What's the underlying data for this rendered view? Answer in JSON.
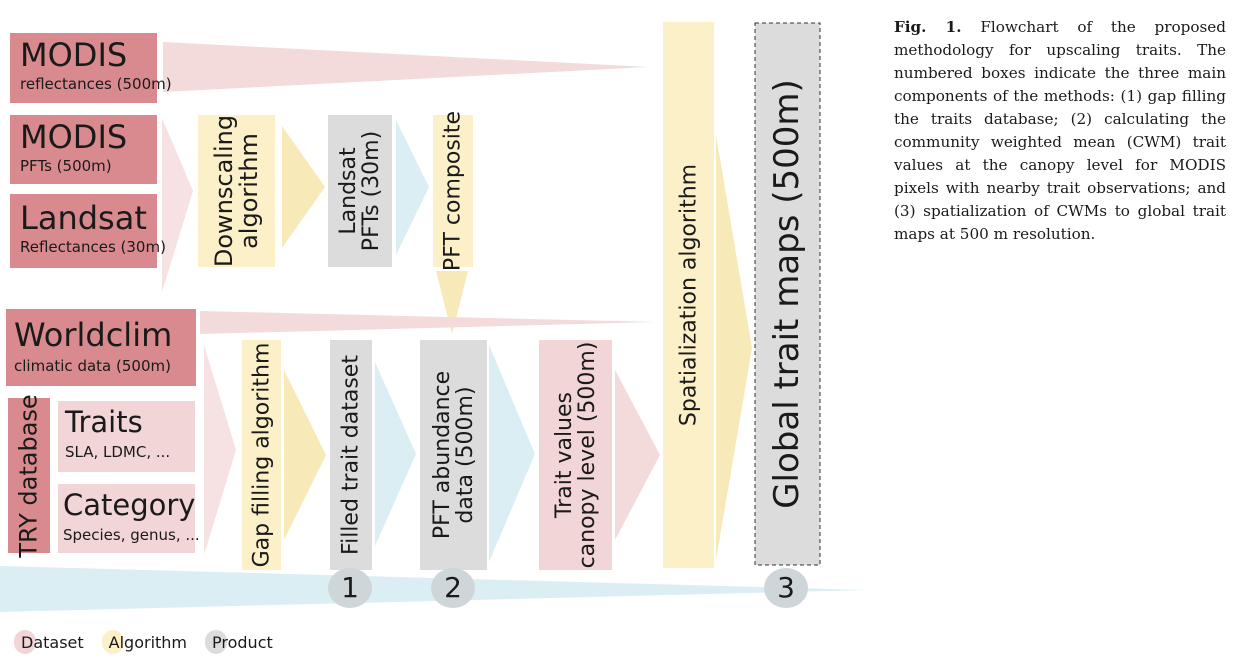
{
  "colors": {
    "dataset": "#d98a8f",
    "dataset_light": "#f2d5d7",
    "algorithm": "#fbf0c8",
    "product": "#dcdcdc",
    "flow_blue": "#dbeef3",
    "flow_pink": "#f3dadb",
    "flow_yellow": "#f7e9b8"
  },
  "inputs": {
    "modis_reflect": {
      "title": "MODIS",
      "sub": "reflectances (500m)"
    },
    "modis_pft": {
      "title": "MODIS",
      "sub": "PFTs (500m)"
    },
    "landsat": {
      "title": "Landsat",
      "sub": "Reflectances (30m)"
    },
    "worldclim": {
      "title": "Worldclim",
      "sub": "climatic data (500m)"
    },
    "try_db": {
      "title": "TRY database"
    },
    "traits": {
      "title": "Traits",
      "sub": "SLA, LDMC, ..."
    },
    "category": {
      "title": "Category",
      "sub": "Species, genus, ..."
    }
  },
  "steps": {
    "downscaling": {
      "line1": "Downscaling",
      "line2": "algorithm"
    },
    "landsat_pfts": {
      "line1": "Landsat",
      "line2": "PFTs (30m)"
    },
    "pft_composite": {
      "line1": "PFT composite"
    },
    "gap_filling": {
      "line1": "Gap filling algorithm"
    },
    "filled_dataset": {
      "line1": "Filled trait dataset"
    },
    "pft_abundance": {
      "line1": "PFT abundance",
      "line2": "data (500m)"
    },
    "trait_values": {
      "line1": "Trait values",
      "line2": "canopy level (500m)"
    },
    "spatialization": {
      "line1": "Spatialization algorithm"
    },
    "global_maps": {
      "line1": "Global trait maps (500m)"
    }
  },
  "numbers": [
    "1",
    "2",
    "3"
  ],
  "legend": {
    "dataset": "Dataset",
    "algorithm": "Algorithm",
    "product": "Product"
  },
  "caption": {
    "label": "Fig. 1.",
    "text": "Flowchart of the proposed methodology for upscaling traits. The numbered boxes indicate the three main components of the methods: (1) gap filling the traits database; (2) calculating the community weighted mean (CWM) trait values at the canopy level for MODIS pixels with nearby trait observations; and (3) spatialization of CWMs to global trait maps at 500 m resolution."
  }
}
